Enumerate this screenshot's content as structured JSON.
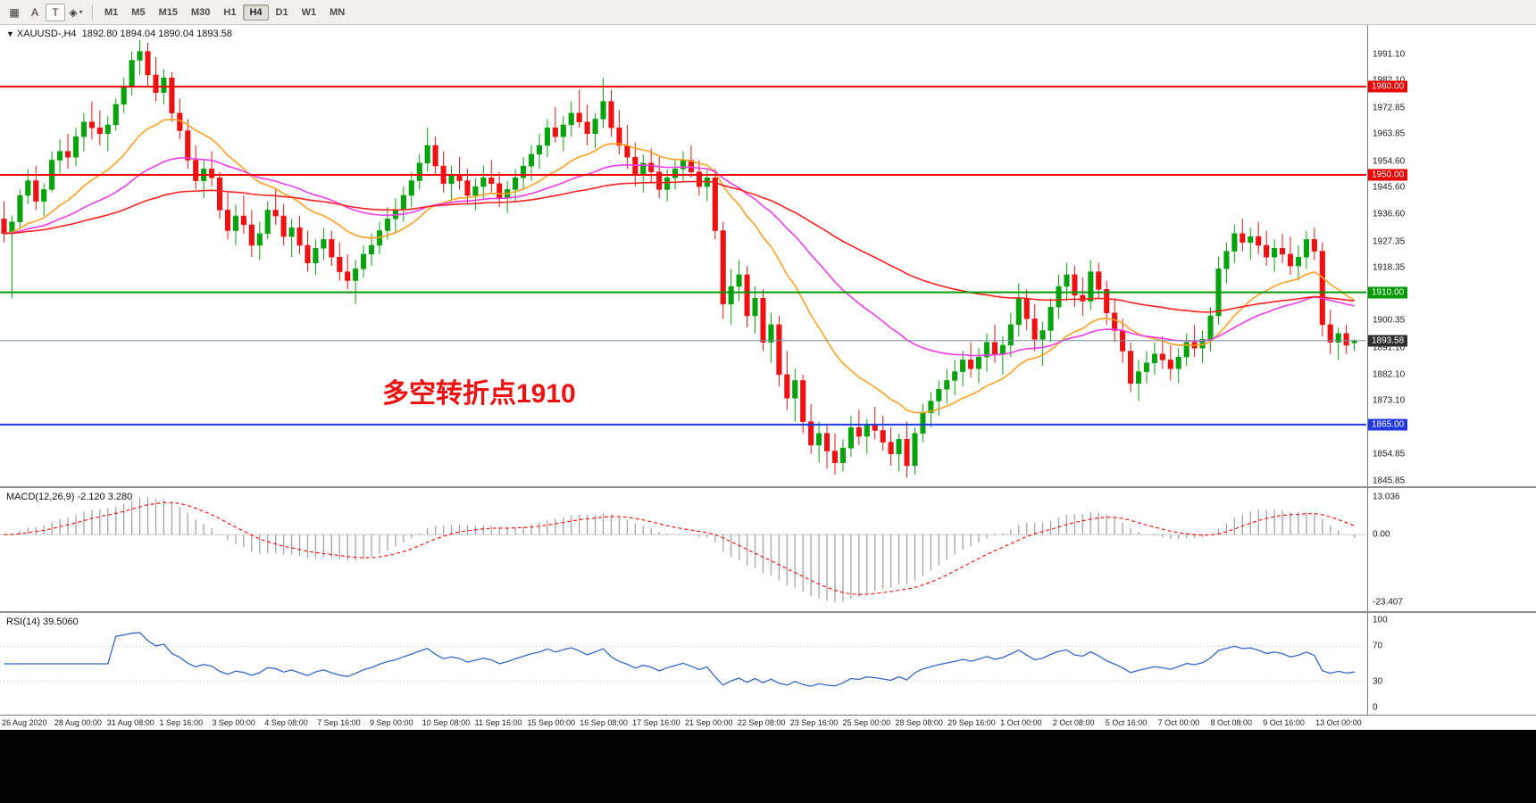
{
  "toolbar": {
    "tools": [
      {
        "name": "charts-grid-icon",
        "glyph": "▦",
        "boxed": false
      },
      {
        "name": "text-label-icon",
        "glyph": "A",
        "boxed": false
      },
      {
        "name": "text-box-icon",
        "glyph": "T",
        "boxed": true
      },
      {
        "name": "drawing-objects-icon",
        "glyph": "◈",
        "boxed": false,
        "caret": true
      }
    ],
    "timeframes": [
      "M1",
      "M5",
      "M15",
      "M30",
      "H1",
      "H4",
      "D1",
      "W1",
      "MN"
    ],
    "active_timeframe": "H4"
  },
  "chart": {
    "title_symbol": "XAUUSD-,H4",
    "title_ohlc": "1892.80 1894.04 1890.04 1893.58",
    "annotation": {
      "text": "多空转折点1910",
      "color": "#ee1111"
    },
    "price_axis_labels": [
      "1991.10",
      "1982.10",
      "1972.85",
      "1963.85",
      "1954.60",
      "1945.60",
      "1936.60",
      "1927.35",
      "1918.35",
      "1909.35",
      "1900.35",
      "1891.10",
      "1882.10",
      "1873.10",
      "1864.10",
      "1854.85",
      "1845.85"
    ],
    "hlines": [
      {
        "price": 1980.0,
        "label": "1980.00",
        "color": "#f00000",
        "badge": "#e80000",
        "width": 2
      },
      {
        "price": 1950.0,
        "label": "1950.00",
        "color": "#f00000",
        "badge": "#e80000",
        "width": 2
      },
      {
        "price": 1910.0,
        "label": "1910.00",
        "color": "#009900",
        "badge": "#009900",
        "width": 2
      },
      {
        "price": 1865.0,
        "label": "1865.00",
        "color": "#2038e0",
        "badge": "#2038e0",
        "width": 2
      },
      {
        "price": 1893.58,
        "label": "1893.58",
        "color": "#7b8ea0",
        "badge": "#2e2e2e",
        "width": 1
      }
    ]
  },
  "macd": {
    "label": "MACD(12,26,9) -2.120 3.280",
    "axis_top": "13.036",
    "axis_zero": "0.00",
    "axis_bottom": "-23.407",
    "histogram_color": "#a3a3a3",
    "signal_color": "#ff0000"
  },
  "rsi": {
    "label": "RSI(14) 39.5060",
    "axis_labels": [
      "100",
      "70",
      "30",
      "0"
    ],
    "levels": [
      70,
      30
    ],
    "line_color": "#3366cc"
  },
  "time_axis": {
    "labels": [
      "26 Aug 2020",
      "28 Aug 00:00",
      "31 Aug 08:00",
      "1 Sep 16:00",
      "3 Sep 00:00",
      "4 Sep 08:00",
      "7 Sep 16:00",
      "9 Sep 00:00",
      "10 Sep 08:00",
      "11 Sep 16:00",
      "15 Sep 00:00",
      "16 Sep 08:00",
      "17 Sep 16:00",
      "21 Sep 00:00",
      "22 Sep 08:00",
      "23 Sep 16:00",
      "25 Sep 00:00",
      "28 Sep 08:00",
      "29 Sep 16:00",
      "1 Oct 00:00",
      "2 Oct 08:00",
      "5 Oct 16:00",
      "7 Oct 00:00",
      "8 Oct 08:00",
      "9 Oct 16:00",
      "13 Oct 00:00"
    ]
  },
  "chart_data": {
    "type": "candlestick",
    "symbol": "XAUUSD",
    "timeframe": "H4",
    "current_ohlc": {
      "open": 1892.8,
      "high": 1894.04,
      "low": 1890.04,
      "close": 1893.58
    },
    "y_range": [
      1844,
      2001
    ],
    "up_color": "#07a30c",
    "down_color": "#ee1111",
    "overlays": [
      {
        "name": "ma-fast-orange",
        "type": "ema",
        "period": 18,
        "color": "#ffa01e"
      },
      {
        "name": "ma-mid-magenta",
        "type": "ema",
        "period": 40,
        "color": "#f03ce8"
      },
      {
        "name": "ma-slow-red",
        "type": "ema",
        "period": 90,
        "color": "#ff2020"
      }
    ],
    "indicators": {
      "macd": {
        "fast": 12,
        "slow": 26,
        "signal": 9,
        "display_range": [
          -23.407,
          13.036
        ]
      },
      "rsi": {
        "period": 14,
        "range": [
          0,
          100
        ],
        "current": 39.506
      }
    },
    "candles": [
      [
        1935,
        1941,
        1927,
        1930
      ],
      [
        1930,
        1936,
        1908,
        1934
      ],
      [
        1934,
        1945,
        1932,
        1943
      ],
      [
        1943,
        1952,
        1940,
        1948
      ],
      [
        1948,
        1953,
        1938,
        1941
      ],
      [
        1941,
        1947,
        1936,
        1945
      ],
      [
        1945,
        1958,
        1944,
        1955
      ],
      [
        1955,
        1962,
        1950,
        1958
      ],
      [
        1958,
        1964,
        1952,
        1956
      ],
      [
        1956,
        1966,
        1953,
        1963
      ],
      [
        1963,
        1971,
        1958,
        1968
      ],
      [
        1968,
        1975,
        1962,
        1966
      ],
      [
        1966,
        1972,
        1960,
        1964
      ],
      [
        1964,
        1970,
        1958,
        1967
      ],
      [
        1967,
        1976,
        1965,
        1974
      ],
      [
        1974,
        1983,
        1971,
        1980
      ],
      [
        1980,
        1992,
        1977,
        1989
      ],
      [
        1989,
        1996,
        1984,
        1992
      ],
      [
        1992,
        1995,
        1980,
        1984
      ],
      [
        1984,
        1990,
        1975,
        1978
      ],
      [
        1978,
        1986,
        1974,
        1983
      ],
      [
        1983,
        1985,
        1968,
        1971
      ],
      [
        1971,
        1976,
        1962,
        1965
      ],
      [
        1965,
        1969,
        1952,
        1955
      ],
      [
        1955,
        1960,
        1945,
        1948
      ],
      [
        1948,
        1955,
        1942,
        1952
      ],
      [
        1952,
        1958,
        1946,
        1949
      ],
      [
        1949,
        1951,
        1935,
        1938
      ],
      [
        1938,
        1944,
        1928,
        1931
      ],
      [
        1931,
        1940,
        1926,
        1936
      ],
      [
        1936,
        1943,
        1930,
        1933
      ],
      [
        1933,
        1938,
        1922,
        1926
      ],
      [
        1926,
        1934,
        1921,
        1930
      ],
      [
        1930,
        1941,
        1928,
        1938
      ],
      [
        1938,
        1945,
        1933,
        1936
      ],
      [
        1936,
        1940,
        1926,
        1929
      ],
      [
        1929,
        1935,
        1922,
        1932
      ],
      [
        1932,
        1936,
        1923,
        1926
      ],
      [
        1926,
        1931,
        1917,
        1920
      ],
      [
        1920,
        1928,
        1916,
        1925
      ],
      [
        1925,
        1932,
        1921,
        1928
      ],
      [
        1928,
        1931,
        1919,
        1922
      ],
      [
        1922,
        1927,
        1914,
        1917
      ],
      [
        1917,
        1923,
        1911,
        1914
      ],
      [
        1914,
        1921,
        1906,
        1918
      ],
      [
        1918,
        1926,
        1915,
        1923
      ],
      [
        1923,
        1930,
        1919,
        1926
      ],
      [
        1926,
        1934,
        1923,
        1931
      ],
      [
        1931,
        1939,
        1928,
        1935
      ],
      [
        1935,
        1942,
        1930,
        1938
      ],
      [
        1938,
        1946,
        1934,
        1943
      ],
      [
        1943,
        1951,
        1939,
        1948
      ],
      [
        1948,
        1957,
        1945,
        1954
      ],
      [
        1954,
        1966,
        1951,
        1960
      ],
      [
        1960,
        1963,
        1950,
        1953
      ],
      [
        1953,
        1958,
        1944,
        1947
      ],
      [
        1947,
        1953,
        1941,
        1950
      ],
      [
        1950,
        1956,
        1945,
        1948
      ],
      [
        1948,
        1952,
        1940,
        1943
      ],
      [
        1943,
        1949,
        1938,
        1946
      ],
      [
        1946,
        1953,
        1942,
        1949
      ],
      [
        1949,
        1955,
        1944,
        1947
      ],
      [
        1947,
        1951,
        1939,
        1942
      ],
      [
        1942,
        1948,
        1937,
        1945
      ],
      [
        1945,
        1952,
        1941,
        1949
      ],
      [
        1949,
        1956,
        1945,
        1953
      ],
      [
        1953,
        1960,
        1948,
        1957
      ],
      [
        1957,
        1964,
        1952,
        1960
      ],
      [
        1960,
        1969,
        1956,
        1966
      ],
      [
        1966,
        1973,
        1961,
        1963
      ],
      [
        1963,
        1970,
        1958,
        1967
      ],
      [
        1967,
        1975,
        1963,
        1971
      ],
      [
        1971,
        1979,
        1966,
        1968
      ],
      [
        1968,
        1974,
        1960,
        1964
      ],
      [
        1964,
        1971,
        1959,
        1969
      ],
      [
        1969,
        1983,
        1966,
        1975
      ],
      [
        1975,
        1979,
        1963,
        1966
      ],
      [
        1966,
        1972,
        1957,
        1960
      ],
      [
        1960,
        1967,
        1952,
        1956
      ],
      [
        1956,
        1961,
        1946,
        1950
      ],
      [
        1950,
        1957,
        1944,
        1954
      ],
      [
        1954,
        1959,
        1947,
        1951
      ],
      [
        1951,
        1956,
        1942,
        1945
      ],
      [
        1945,
        1952,
        1941,
        1949
      ],
      [
        1949,
        1955,
        1945,
        1952
      ],
      [
        1952,
        1958,
        1948,
        1955
      ],
      [
        1955,
        1960,
        1949,
        1951
      ],
      [
        1951,
        1955,
        1943,
        1946
      ],
      [
        1946,
        1952,
        1941,
        1949
      ],
      [
        1949,
        1952,
        1928,
        1931
      ],
      [
        1931,
        1934,
        1901,
        1906
      ],
      [
        1906,
        1918,
        1899,
        1912
      ],
      [
        1912,
        1921,
        1907,
        1916
      ],
      [
        1916,
        1919,
        1898,
        1902
      ],
      [
        1902,
        1912,
        1896,
        1908
      ],
      [
        1908,
        1911,
        1890,
        1893
      ],
      [
        1893,
        1903,
        1886,
        1899
      ],
      [
        1899,
        1902,
        1878,
        1882
      ],
      [
        1882,
        1890,
        1870,
        1874
      ],
      [
        1874,
        1884,
        1866,
        1880
      ],
      [
        1880,
        1882,
        1862,
        1866
      ],
      [
        1866,
        1872,
        1855,
        1858
      ],
      [
        1858,
        1866,
        1852,
        1862
      ],
      [
        1862,
        1865,
        1850,
        1856
      ],
      [
        1856,
        1862,
        1848,
        1852
      ],
      [
        1852,
        1860,
        1849,
        1857
      ],
      [
        1857,
        1868,
        1854,
        1864
      ],
      [
        1864,
        1870,
        1858,
        1861
      ],
      [
        1861,
        1867,
        1855,
        1865
      ],
      [
        1865,
        1871,
        1860,
        1863
      ],
      [
        1863,
        1868,
        1856,
        1859
      ],
      [
        1859,
        1864,
        1851,
        1855
      ],
      [
        1855,
        1862,
        1849,
        1860
      ],
      [
        1860,
        1866,
        1847,
        1851
      ],
      [
        1851,
        1864,
        1848,
        1862
      ],
      [
        1862,
        1872,
        1859,
        1869
      ],
      [
        1869,
        1876,
        1864,
        1873
      ],
      [
        1873,
        1880,
        1868,
        1877
      ],
      [
        1877,
        1884,
        1872,
        1880
      ],
      [
        1880,
        1887,
        1875,
        1883
      ],
      [
        1883,
        1890,
        1878,
        1887
      ],
      [
        1887,
        1893,
        1881,
        1884
      ],
      [
        1884,
        1891,
        1879,
        1888
      ],
      [
        1888,
        1896,
        1883,
        1893
      ],
      [
        1893,
        1899,
        1886,
        1889
      ],
      [
        1889,
        1895,
        1882,
        1892
      ],
      [
        1892,
        1903,
        1888,
        1899
      ],
      [
        1899,
        1913,
        1895,
        1908
      ],
      [
        1908,
        1911,
        1897,
        1901
      ],
      [
        1901,
        1906,
        1890,
        1894
      ],
      [
        1894,
        1900,
        1885,
        1897
      ],
      [
        1897,
        1908,
        1893,
        1905
      ],
      [
        1905,
        1916,
        1901,
        1912
      ],
      [
        1912,
        1920,
        1907,
        1916
      ],
      [
        1916,
        1919,
        1905,
        1909
      ],
      [
        1909,
        1915,
        1902,
        1907
      ],
      [
        1907,
        1921,
        1904,
        1917
      ],
      [
        1917,
        1920,
        1908,
        1911
      ],
      [
        1911,
        1914,
        1899,
        1903
      ],
      [
        1903,
        1908,
        1893,
        1897
      ],
      [
        1897,
        1901,
        1886,
        1890
      ],
      [
        1890,
        1893,
        1876,
        1879
      ],
      [
        1879,
        1887,
        1873,
        1883
      ],
      [
        1883,
        1890,
        1879,
        1886
      ],
      [
        1886,
        1893,
        1882,
        1889
      ],
      [
        1889,
        1895,
        1884,
        1887
      ],
      [
        1887,
        1892,
        1880,
        1884
      ],
      [
        1884,
        1891,
        1879,
        1888
      ],
      [
        1888,
        1896,
        1885,
        1893
      ],
      [
        1893,
        1899,
        1888,
        1891
      ],
      [
        1891,
        1897,
        1886,
        1894
      ],
      [
        1894,
        1905,
        1890,
        1902
      ],
      [
        1902,
        1922,
        1899,
        1918
      ],
      [
        1918,
        1927,
        1913,
        1924
      ],
      [
        1924,
        1933,
        1920,
        1930
      ],
      [
        1930,
        1935,
        1924,
        1927
      ],
      [
        1927,
        1932,
        1921,
        1929
      ],
      [
        1929,
        1934,
        1923,
        1926
      ],
      [
        1926,
        1931,
        1919,
        1922
      ],
      [
        1922,
        1928,
        1917,
        1925
      ],
      [
        1925,
        1930,
        1920,
        1923
      ],
      [
        1923,
        1929,
        1916,
        1919
      ],
      [
        1919,
        1926,
        1914,
        1922
      ],
      [
        1922,
        1931,
        1918,
        1928
      ],
      [
        1928,
        1932,
        1921,
        1924
      ],
      [
        1924,
        1927,
        1895,
        1899
      ],
      [
        1899,
        1904,
        1889,
        1893
      ],
      [
        1893,
        1898,
        1887,
        1896
      ],
      [
        1896,
        1899,
        1889,
        1892
      ],
      [
        1892.8,
        1894.04,
        1890.04,
        1893.58
      ]
    ]
  }
}
